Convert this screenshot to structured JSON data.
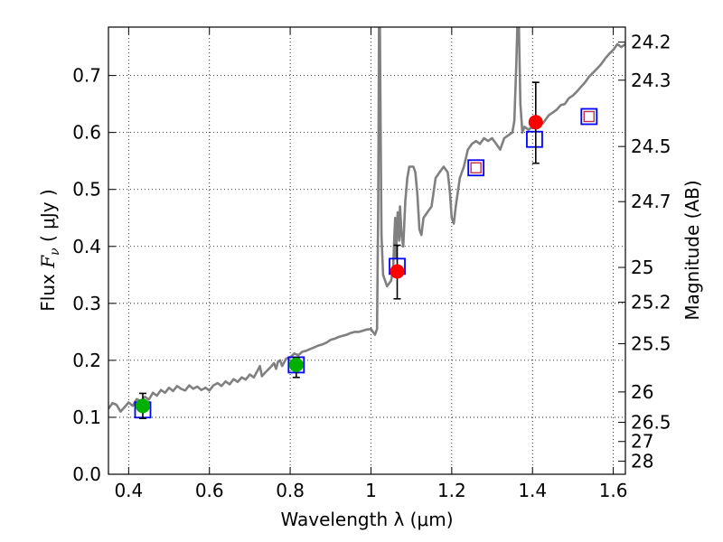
{
  "chart_data": {
    "type": "scatter",
    "title": "",
    "xlabel": "Wavelength  λ (μm)",
    "ylabel_prefix": "Flux  ",
    "ylabel_var": "F",
    "ylabel_sub": "ν",
    "ylabel_suffix": "  ( μJy )",
    "y2label": "Magnitude (AB)",
    "xlim": [
      0.35,
      1.63
    ],
    "ylim": [
      0.0,
      0.785
    ],
    "grid": true,
    "x_ticks": [
      {
        "value": 0.4,
        "label": "0.4"
      },
      {
        "value": 0.6,
        "label": "0.6"
      },
      {
        "value": 0.8,
        "label": "0.8"
      },
      {
        "value": 1.0,
        "label": "1"
      },
      {
        "value": 1.2,
        "label": "1.2"
      },
      {
        "value": 1.4,
        "label": "1.4"
      },
      {
        "value": 1.6,
        "label": "1.6"
      }
    ],
    "y_ticks": [
      {
        "value": 0.0,
        "label": "0.0"
      },
      {
        "value": 0.1,
        "label": "0.1"
      },
      {
        "value": 0.2,
        "label": "0.2"
      },
      {
        "value": 0.3,
        "label": "0.3"
      },
      {
        "value": 0.4,
        "label": "0.4"
      },
      {
        "value": 0.5,
        "label": "0.5"
      },
      {
        "value": 0.6,
        "label": "0.6"
      },
      {
        "value": 0.7,
        "label": "0.7"
      }
    ],
    "y2_ticks": [
      {
        "flux": 0.7586,
        "label": "24.2"
      },
      {
        "flux": 0.6918,
        "label": "24.3"
      },
      {
        "flux": 0.5754,
        "label": "24.5"
      },
      {
        "flux": 0.4786,
        "label": "24.7"
      },
      {
        "flux": 0.3631,
        "label": "25"
      },
      {
        "flux": 0.302,
        "label": "25.2"
      },
      {
        "flux": 0.2291,
        "label": "25.5"
      },
      {
        "flux": 0.1445,
        "label": "26"
      },
      {
        "flux": 0.0912,
        "label": "26.5"
      },
      {
        "flux": 0.0575,
        "label": "27"
      },
      {
        "flux": 0.0229,
        "label": "28"
      }
    ],
    "series": [
      {
        "type": "line",
        "color": "#808080",
        "points": [
          [
            0.35,
            0.115
          ],
          [
            0.36,
            0.125
          ],
          [
            0.37,
            0.122
          ],
          [
            0.38,
            0.11
          ],
          [
            0.39,
            0.118
          ],
          [
            0.4,
            0.126
          ],
          [
            0.41,
            0.12
          ],
          [
            0.42,
            0.132
          ],
          [
            0.43,
            0.128
          ],
          [
            0.44,
            0.136
          ],
          [
            0.45,
            0.131
          ],
          [
            0.46,
            0.143
          ],
          [
            0.47,
            0.138
          ],
          [
            0.48,
            0.148
          ],
          [
            0.49,
            0.143
          ],
          [
            0.5,
            0.152
          ],
          [
            0.51,
            0.146
          ],
          [
            0.52,
            0.155
          ],
          [
            0.53,
            0.15
          ],
          [
            0.54,
            0.147
          ],
          [
            0.55,
            0.156
          ],
          [
            0.56,
            0.15
          ],
          [
            0.57,
            0.154
          ],
          [
            0.58,
            0.148
          ],
          [
            0.59,
            0.152
          ],
          [
            0.6,
            0.147
          ],
          [
            0.61,
            0.156
          ],
          [
            0.62,
            0.16
          ],
          [
            0.63,
            0.155
          ],
          [
            0.64,
            0.163
          ],
          [
            0.65,
            0.158
          ],
          [
            0.66,
            0.167
          ],
          [
            0.67,
            0.162
          ],
          [
            0.68,
            0.17
          ],
          [
            0.69,
            0.166
          ],
          [
            0.7,
            0.175
          ],
          [
            0.71,
            0.17
          ],
          [
            0.72,
            0.183
          ],
          [
            0.725,
            0.19
          ],
          [
            0.73,
            0.172
          ],
          [
            0.74,
            0.18
          ],
          [
            0.75,
            0.187
          ],
          [
            0.76,
            0.195
          ],
          [
            0.765,
            0.185
          ],
          [
            0.77,
            0.198
          ],
          [
            0.775,
            0.2
          ],
          [
            0.78,
            0.19
          ],
          [
            0.79,
            0.203
          ],
          [
            0.8,
            0.205
          ],
          [
            0.81,
            0.212
          ],
          [
            0.82,
            0.209
          ],
          [
            0.83,
            0.215
          ],
          [
            0.84,
            0.217
          ],
          [
            0.85,
            0.22
          ],
          [
            0.86,
            0.223
          ],
          [
            0.87,
            0.226
          ],
          [
            0.88,
            0.228
          ],
          [
            0.89,
            0.231
          ],
          [
            0.9,
            0.236
          ],
          [
            0.91,
            0.238
          ],
          [
            0.92,
            0.241
          ],
          [
            0.93,
            0.243
          ],
          [
            0.94,
            0.245
          ],
          [
            0.95,
            0.248
          ],
          [
            0.96,
            0.25
          ],
          [
            0.97,
            0.25
          ],
          [
            0.98,
            0.252
          ],
          [
            0.99,
            0.254
          ],
          [
            1.0,
            0.255
          ],
          [
            1.01,
            0.245
          ],
          [
            1.015,
            0.255
          ],
          [
            1.018,
            0.47
          ],
          [
            1.02,
            0.8
          ],
          [
            1.022,
            0.8
          ],
          [
            1.024,
            0.6
          ],
          [
            1.026,
            0.42
          ],
          [
            1.03,
            0.35
          ],
          [
            1.04,
            0.33
          ],
          [
            1.05,
            0.34
          ],
          [
            1.055,
            0.36
          ],
          [
            1.058,
            0.42
          ],
          [
            1.06,
            0.45
          ],
          [
            1.062,
            0.38
          ],
          [
            1.066,
            0.46
          ],
          [
            1.07,
            0.41
          ],
          [
            1.072,
            0.47
          ],
          [
            1.076,
            0.42
          ],
          [
            1.08,
            0.4
          ],
          [
            1.085,
            0.48
          ],
          [
            1.09,
            0.52
          ],
          [
            1.095,
            0.54
          ],
          [
            1.105,
            0.54
          ],
          [
            1.11,
            0.53
          ],
          [
            1.115,
            0.49
          ],
          [
            1.12,
            0.43
          ],
          [
            1.125,
            0.42
          ],
          [
            1.13,
            0.45
          ],
          [
            1.14,
            0.46
          ],
          [
            1.15,
            0.47
          ],
          [
            1.16,
            0.52
          ],
          [
            1.17,
            0.53
          ],
          [
            1.18,
            0.54
          ],
          [
            1.19,
            0.53
          ],
          [
            1.195,
            0.5
          ],
          [
            1.2,
            0.45
          ],
          [
            1.205,
            0.44
          ],
          [
            1.21,
            0.47
          ],
          [
            1.22,
            0.52
          ],
          [
            1.23,
            0.54
          ],
          [
            1.24,
            0.57
          ],
          [
            1.25,
            0.58
          ],
          [
            1.26,
            0.585
          ],
          [
            1.27,
            0.58
          ],
          [
            1.28,
            0.59
          ],
          [
            1.29,
            0.585
          ],
          [
            1.3,
            0.59
          ],
          [
            1.31,
            0.58
          ],
          [
            1.32,
            0.57
          ],
          [
            1.33,
            0.59
          ],
          [
            1.34,
            0.595
          ],
          [
            1.35,
            0.6
          ],
          [
            1.355,
            0.62
          ],
          [
            1.36,
            0.72
          ],
          [
            1.363,
            0.8
          ],
          [
            1.366,
            0.8
          ],
          [
            1.37,
            0.65
          ],
          [
            1.375,
            0.6
          ],
          [
            1.38,
            0.61
          ],
          [
            1.39,
            0.605
          ],
          [
            1.4,
            0.61
          ],
          [
            1.41,
            0.615
          ],
          [
            1.42,
            0.612
          ],
          [
            1.43,
            0.62
          ],
          [
            1.44,
            0.63
          ],
          [
            1.45,
            0.635
          ],
          [
            1.46,
            0.64
          ],
          [
            1.47,
            0.648
          ],
          [
            1.48,
            0.65
          ],
          [
            1.49,
            0.66
          ],
          [
            1.5,
            0.665
          ],
          [
            1.51,
            0.672
          ],
          [
            1.52,
            0.68
          ],
          [
            1.53,
            0.688
          ],
          [
            1.54,
            0.698
          ],
          [
            1.55,
            0.705
          ],
          [
            1.56,
            0.712
          ],
          [
            1.57,
            0.72
          ],
          [
            1.58,
            0.73
          ],
          [
            1.59,
            0.738
          ],
          [
            1.6,
            0.745
          ],
          [
            1.61,
            0.755
          ],
          [
            1.62,
            0.75
          ],
          [
            1.63,
            0.755
          ]
        ]
      },
      {
        "type": "open-square",
        "color": "#0000ff",
        "points": [
          [
            0.435,
            0.113
          ],
          [
            0.815,
            0.192
          ],
          [
            1.065,
            0.365
          ],
          [
            1.26,
            0.538
          ],
          [
            1.405,
            0.588
          ],
          [
            1.54,
            0.628
          ]
        ]
      },
      {
        "type": "open-square-small",
        "color": "#c0304a",
        "points": [
          [
            1.26,
            0.538
          ],
          [
            1.54,
            0.628
          ]
        ]
      },
      {
        "type": "circle-errorbar",
        "color": "#00b000",
        "points": [
          [
            0.435,
            0.12,
            0.098,
            0.142
          ],
          [
            0.815,
            0.192,
            0.17,
            0.205
          ]
        ]
      },
      {
        "type": "circle-errorbar",
        "color": "#ff0000",
        "points": [
          [
            1.065,
            0.356,
            0.308,
            0.402
          ],
          [
            1.408,
            0.618,
            0.546,
            0.688
          ]
        ]
      }
    ]
  }
}
